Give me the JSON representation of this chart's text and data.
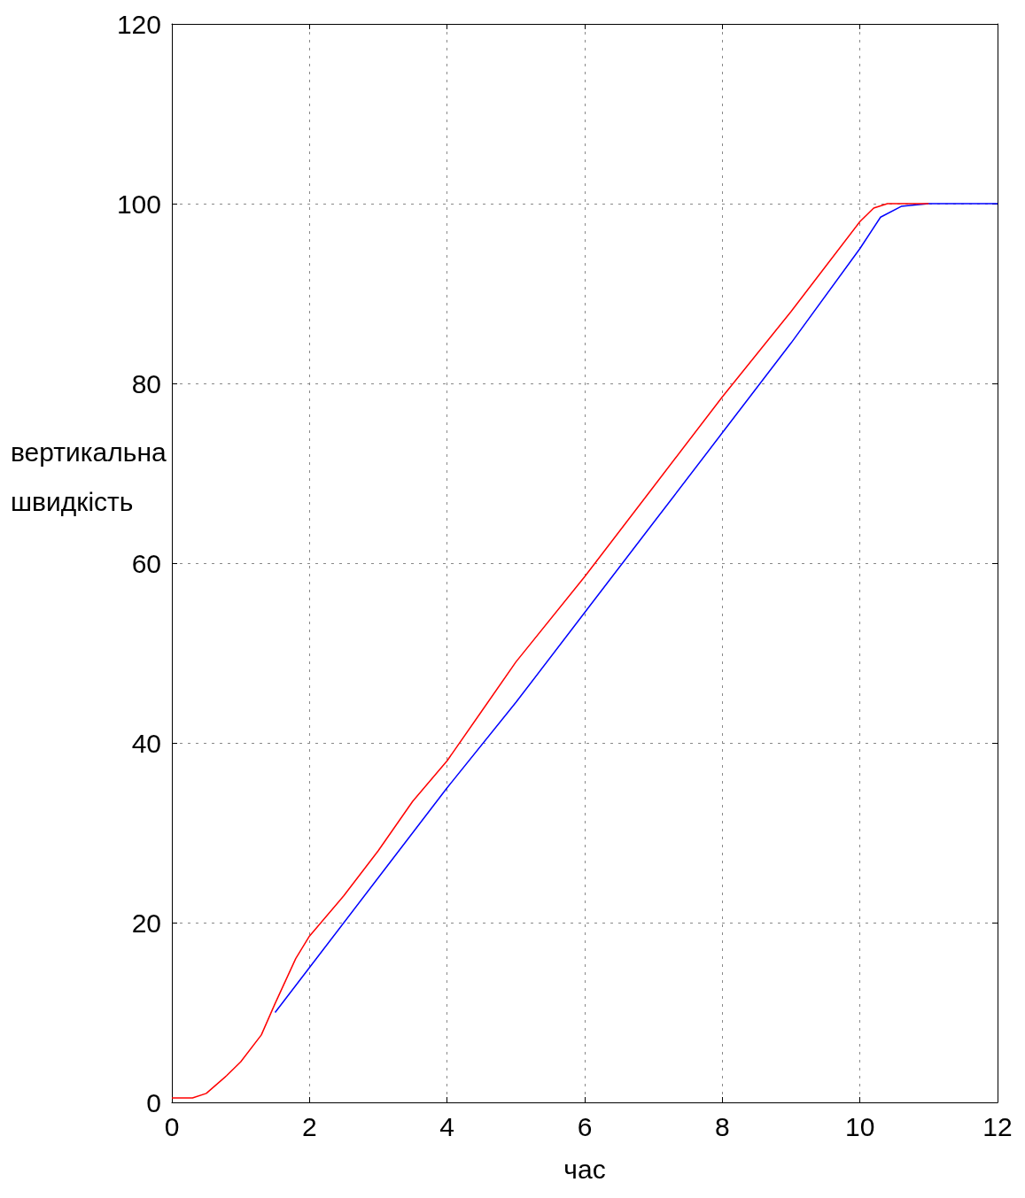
{
  "chart_data": {
    "type": "line",
    "xlabel": "час",
    "ylabel": "вертикальна швидкість",
    "xlim": [
      0,
      12
    ],
    "xticks": [
      0,
      2,
      4,
      6,
      8,
      10,
      12
    ],
    "ylim": [
      0,
      120
    ],
    "yticks": [
      0,
      20,
      40,
      60,
      80,
      100,
      120
    ],
    "grid": true,
    "marker": "none",
    "line_style": "solid",
    "series": [
      {
        "color": "#ff0000",
        "x": [
          0,
          0.3,
          0.5,
          0.8,
          1,
          1.3,
          1.5,
          1.8,
          2,
          2.5,
          3,
          3.5,
          4,
          4.5,
          5,
          6,
          7,
          8,
          9,
          9.5,
          10,
          10.2,
          10.4,
          11
        ],
        "values": [
          0.5,
          0.5,
          1,
          3,
          4.5,
          7.5,
          11,
          16,
          18.5,
          23,
          28,
          33.5,
          38,
          43.5,
          49,
          58.5,
          68.5,
          78.5,
          88,
          93,
          98,
          99.5,
          100,
          100
        ]
      },
      {
        "color": "#0000ff",
        "x": [
          1.5,
          2,
          3,
          4,
          5,
          6,
          7,
          8,
          9,
          10,
          10.3,
          10.6,
          11,
          12
        ],
        "values": [
          10,
          15,
          25,
          35,
          44.5,
          54.5,
          64.5,
          74.5,
          84.5,
          95,
          98.5,
          99.7,
          100,
          100
        ]
      }
    ]
  }
}
